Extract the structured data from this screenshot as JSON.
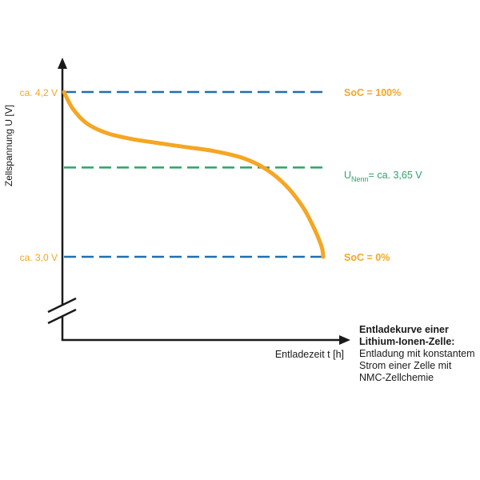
{
  "chart_data": {
    "type": "line",
    "ylabel": "Zellspannung U [V]",
    "xlabel": "Entladezeit t [h]",
    "y_tick_labels": {
      "top": "ca. 4,2 V",
      "bottom": "ca. 3,0 V"
    },
    "reference_lines": [
      {
        "id": "soc100",
        "label": "SoC = 100%",
        "y": 4.2,
        "color": "#1f6fb2"
      },
      {
        "id": "unenn",
        "label_main": "U",
        "label_sub": "Nenn",
        "label_rest": "= ca. 3,65 V",
        "y": 3.65,
        "color": "#2ea36a"
      },
      {
        "id": "soc0",
        "label": "SoC = 0%",
        "y": 3.0,
        "color": "#1f6fb2"
      }
    ],
    "curve_color": "#f5a623",
    "accent_label_color": "#f5a623",
    "ylim": [
      2.6,
      4.6
    ],
    "xlim": [
      0,
      10
    ],
    "series": [
      {
        "values": [
          [
            0.0,
            4.2
          ],
          [
            0.3,
            4.08
          ],
          [
            0.8,
            3.97
          ],
          [
            1.5,
            3.9
          ],
          [
            2.3,
            3.86
          ],
          [
            3.2,
            3.83
          ],
          [
            4.2,
            3.8
          ],
          [
            5.2,
            3.77
          ],
          [
            6.2,
            3.72
          ],
          [
            7.0,
            3.64
          ],
          [
            7.7,
            3.52
          ],
          [
            8.3,
            3.36
          ],
          [
            8.7,
            3.2
          ],
          [
            8.95,
            3.07
          ],
          [
            9.0,
            3.0
          ]
        ]
      }
    ],
    "axis_break": true
  },
  "caption": {
    "title": "Entladekurve einer Lithium-Ionen-Zelle:",
    "text": "Entladung mit konstantem Strom einer Zelle mit NMC-Zellchemie"
  }
}
